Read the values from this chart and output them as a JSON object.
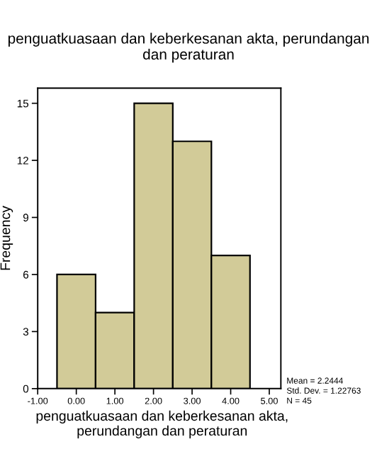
{
  "chart_data": {
    "type": "histogram",
    "title": "penguatkuasaan dan keberkesanan akta, perundangan dan peraturan",
    "xlabel": "penguatkuasaan dan keberkesanan akta, perundangan dan peraturan",
    "ylabel": "Frequency",
    "bins": [
      -0.5,
      0.5,
      1.5,
      2.5,
      3.5,
      4.5
    ],
    "values": [
      6,
      4,
      15,
      13,
      7
    ],
    "color": "#d2cb98",
    "xlim": [
      -1,
      5.3
    ],
    "xticks": [
      {
        "value": -1,
        "label": "-1.00"
      },
      {
        "value": 0,
        "label": "0.00"
      },
      {
        "value": 1,
        "label": "1.00"
      },
      {
        "value": 2,
        "label": "2.00"
      },
      {
        "value": 3,
        "label": "3.00"
      },
      {
        "value": 4,
        "label": "4.00"
      },
      {
        "value": 5,
        "label": "5.00"
      }
    ],
    "ylim": [
      0,
      15.8
    ],
    "yticks": [
      0,
      3,
      6,
      9,
      12,
      15
    ],
    "grid": false,
    "annotations": [
      "Mean = 2.2444",
      "Std. Dev. = 1.22763",
      "N = 45"
    ]
  }
}
